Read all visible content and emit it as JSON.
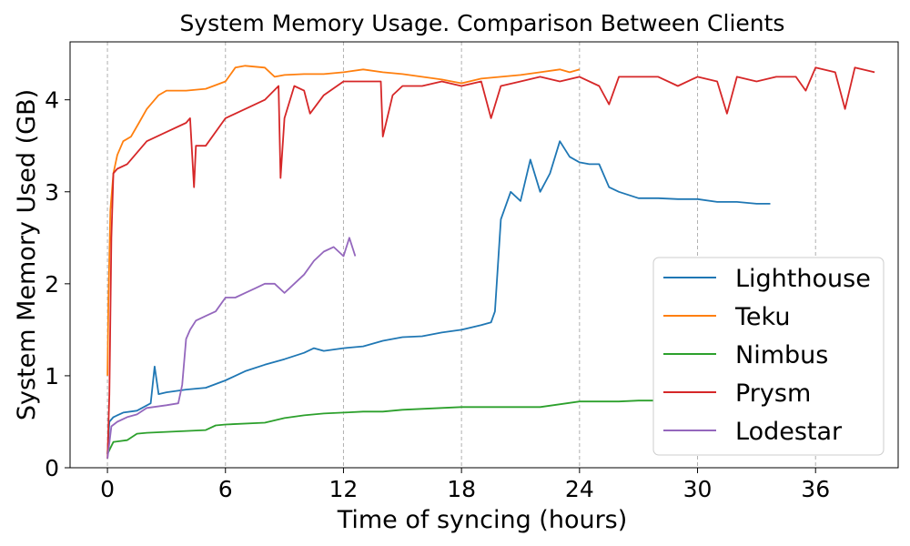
{
  "chart_data": {
    "type": "line",
    "title": "System Memory Usage. Comparison Between Clients",
    "xlabel": "Time of syncing (hours)",
    "ylabel": "System Memory Used (GB)",
    "xlim": [
      -1.9,
      40.2
    ],
    "ylim": [
      0,
      4.63
    ],
    "xticks": [
      0,
      6,
      12,
      18,
      24,
      30,
      36
    ],
    "yticks": [
      0,
      1,
      2,
      3,
      4
    ],
    "grid": {
      "x": true,
      "y": false
    },
    "legend": {
      "placement": "lower-right",
      "entries": [
        "Lighthouse",
        "Teku",
        "Nimbus",
        "Prysm",
        "Lodestar"
      ]
    },
    "series": [
      {
        "name": "Lighthouse",
        "color": "#1f77b4",
        "x": [
          0,
          0.1,
          0.3,
          0.8,
          1.5,
          2.2,
          2.4,
          2.6,
          3.0,
          4.0,
          5.0,
          6.0,
          7.0,
          8.0,
          9.0,
          10.0,
          10.5,
          11.0,
          12.0,
          13.0,
          14.0,
          15.0,
          16.0,
          17.0,
          18.0,
          19.0,
          19.5,
          19.7,
          20.0,
          20.5,
          21.0,
          21.5,
          22.0,
          22.5,
          23.0,
          23.5,
          24.0,
          24.5,
          25.0,
          25.5,
          26.0,
          27.0,
          28.0,
          29.0,
          30.0,
          31.0,
          32.0,
          33.0,
          33.7
        ],
        "y": [
          0.15,
          0.5,
          0.55,
          0.6,
          0.62,
          0.7,
          1.1,
          0.8,
          0.82,
          0.85,
          0.87,
          0.95,
          1.05,
          1.12,
          1.18,
          1.25,
          1.3,
          1.27,
          1.3,
          1.32,
          1.38,
          1.42,
          1.43,
          1.47,
          1.5,
          1.55,
          1.58,
          1.7,
          2.7,
          3.0,
          2.9,
          3.35,
          3.0,
          3.2,
          3.55,
          3.38,
          3.32,
          3.3,
          3.3,
          3.05,
          3.0,
          2.93,
          2.93,
          2.92,
          2.92,
          2.89,
          2.89,
          2.87,
          2.87
        ]
      },
      {
        "name": "Teku",
        "color": "#ff7f0e",
        "x": [
          0,
          0.05,
          0.15,
          0.3,
          0.5,
          0.8,
          1.2,
          1.6,
          2.0,
          2.6,
          3.0,
          4.0,
          5.0,
          6.0,
          6.5,
          7.0,
          8.0,
          8.5,
          9.0,
          10.0,
          11.0,
          12.0,
          13.0,
          14.0,
          15.0,
          16.0,
          17.0,
          18.0,
          19.0,
          20.0,
          21.0,
          22.0,
          23.0,
          23.5,
          24.0
        ],
        "y": [
          1.0,
          1.8,
          2.8,
          3.2,
          3.4,
          3.55,
          3.6,
          3.75,
          3.9,
          4.05,
          4.1,
          4.1,
          4.12,
          4.2,
          4.35,
          4.37,
          4.35,
          4.25,
          4.27,
          4.28,
          4.28,
          4.3,
          4.33,
          4.3,
          4.28,
          4.25,
          4.22,
          4.18,
          4.23,
          4.25,
          4.27,
          4.3,
          4.33,
          4.3,
          4.33
        ]
      },
      {
        "name": "Nimbus",
        "color": "#2ca02c",
        "x": [
          0,
          0.3,
          1.0,
          1.5,
          2.0,
          3.0,
          4.0,
          5.0,
          5.5,
          6.0,
          8.0,
          9.0,
          10.0,
          11.0,
          12.0,
          13.0,
          14.0,
          15.0,
          16.0,
          17.0,
          18.0,
          20.0,
          22.0,
          24.0,
          25.0,
          26.0,
          27.0,
          28.0,
          30.0,
          32.0,
          34.0,
          36.0,
          38.0,
          38.8
        ],
        "y": [
          0.15,
          0.28,
          0.3,
          0.37,
          0.38,
          0.39,
          0.4,
          0.41,
          0.46,
          0.47,
          0.49,
          0.54,
          0.57,
          0.59,
          0.6,
          0.61,
          0.61,
          0.63,
          0.64,
          0.65,
          0.66,
          0.66,
          0.66,
          0.72,
          0.72,
          0.72,
          0.73,
          0.73,
          0.74,
          0.75,
          0.75,
          0.76,
          0.76,
          0.76
        ]
      },
      {
        "name": "Prysm",
        "color": "#d62728",
        "x": [
          0,
          0.1,
          0.2,
          0.3,
          0.5,
          1.0,
          2.0,
          3.0,
          4.0,
          4.2,
          4.4,
          4.5,
          5.0,
          6.0,
          7.0,
          8.0,
          8.7,
          8.8,
          9.0,
          9.5,
          10.0,
          10.3,
          11.0,
          12.0,
          13.0,
          13.9,
          14.0,
          14.5,
          15.0,
          16.0,
          17.0,
          18.0,
          19.0,
          19.5,
          20.0,
          21.0,
          22.0,
          23.0,
          24.0,
          25.0,
          25.5,
          26.0,
          27.0,
          28.0,
          29.0,
          30.0,
          31.0,
          31.5,
          32.0,
          33.0,
          34.0,
          35.0,
          35.5,
          36.0,
          37.0,
          37.5,
          38.0,
          39.0
        ],
        "y": [
          0.1,
          0.8,
          2.5,
          3.2,
          3.25,
          3.3,
          3.55,
          3.65,
          3.75,
          3.8,
          3.05,
          3.5,
          3.5,
          3.8,
          3.9,
          4.0,
          4.15,
          3.15,
          3.8,
          4.15,
          4.1,
          3.85,
          4.05,
          4.2,
          4.2,
          4.2,
          3.6,
          4.05,
          4.15,
          4.15,
          4.2,
          4.15,
          4.2,
          3.8,
          4.15,
          4.2,
          4.25,
          4.2,
          4.25,
          4.15,
          3.95,
          4.25,
          4.25,
          4.25,
          4.15,
          4.25,
          4.2,
          3.85,
          4.25,
          4.2,
          4.25,
          4.25,
          4.1,
          4.35,
          4.3,
          3.9,
          4.35,
          4.3
        ]
      },
      {
        "name": "Lodestar",
        "color": "#9467bd",
        "x": [
          0,
          0.2,
          0.5,
          1.0,
          1.5,
          2.0,
          3.0,
          3.6,
          3.8,
          4.0,
          4.2,
          4.5,
          5.0,
          5.5,
          6.0,
          6.5,
          7.0,
          7.5,
          8.0,
          8.5,
          9.0,
          9.5,
          10.0,
          10.5,
          11.0,
          11.5,
          12.0,
          12.3,
          12.6
        ],
        "y": [
          0.1,
          0.45,
          0.5,
          0.55,
          0.58,
          0.65,
          0.68,
          0.7,
          0.9,
          1.4,
          1.5,
          1.6,
          1.65,
          1.7,
          1.85,
          1.85,
          1.9,
          1.95,
          2.0,
          2.0,
          1.9,
          2.0,
          2.1,
          2.25,
          2.35,
          2.4,
          2.3,
          2.5,
          2.3
        ]
      }
    ]
  }
}
